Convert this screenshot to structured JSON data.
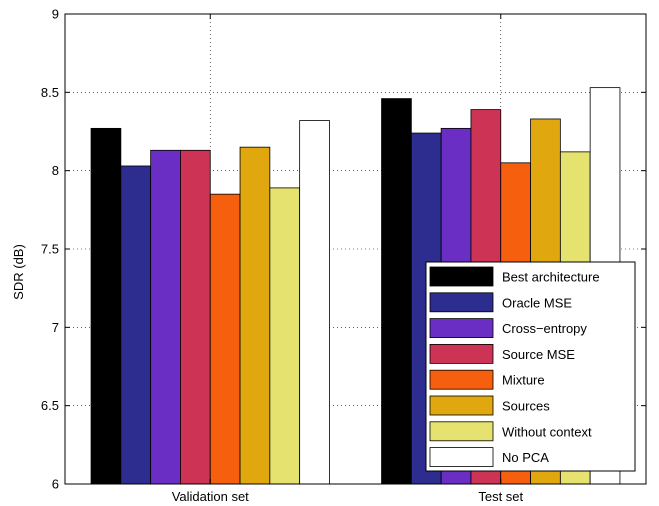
{
  "chart_data": {
    "type": "bar",
    "title": "",
    "xlabel": "",
    "ylabel": "SDR (dB)",
    "ylim": [
      6,
      9
    ],
    "yticks": [
      "6",
      "6.5",
      "7",
      "7.5",
      "8",
      "8.5",
      "9"
    ],
    "categories": [
      "Validation set",
      "Test set"
    ],
    "grid": true,
    "legend_position": "bottom-right",
    "series": [
      {
        "name": "Best architecture",
        "color": "#000000",
        "values": [
          8.27,
          8.46
        ]
      },
      {
        "name": "Oracle MSE",
        "color": "#2d2d8f",
        "values": [
          8.03,
          8.24
        ]
      },
      {
        "name": "Cross−entropy",
        "color": "#6a2ec4",
        "values": [
          8.13,
          8.27
        ]
      },
      {
        "name": "Source MSE",
        "color": "#cc3355",
        "values": [
          8.13,
          8.39
        ]
      },
      {
        "name": "Mixture",
        "color": "#f55f0e",
        "values": [
          7.85,
          8.05
        ]
      },
      {
        "name": "Sources",
        "color": "#e0a80e",
        "values": [
          8.15,
          8.33
        ]
      },
      {
        "name": "Without context",
        "color": "#e5e270",
        "values": [
          7.89,
          8.12
        ]
      },
      {
        "name": "No PCA",
        "color": "#ffffff",
        "values": [
          8.32,
          8.53
        ]
      }
    ]
  }
}
